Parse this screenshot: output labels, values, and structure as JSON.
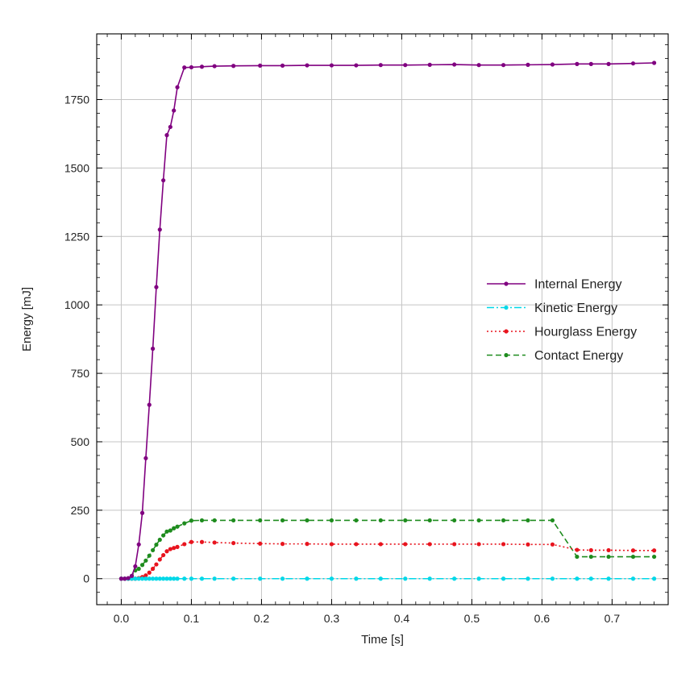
{
  "chart_data": {
    "type": "line",
    "title": "",
    "xlabel": "Time [s]",
    "ylabel": "Energy [mJ]",
    "xlim": [
      -0.035,
      0.78
    ],
    "ylim": [
      -95,
      1990
    ],
    "xticks": [
      0.0,
      0.1,
      0.2,
      0.3,
      0.4,
      0.5,
      0.6,
      0.7
    ],
    "xtick_labels": [
      "0.0",
      "0.1",
      "0.2",
      "0.3",
      "0.4",
      "0.5",
      "0.6",
      "0.7"
    ],
    "yticks": [
      0,
      250,
      500,
      750,
      1000,
      1250,
      1500,
      1750
    ],
    "ytick_labels": [
      "0",
      "250",
      "500",
      "750",
      "1000",
      "1250",
      "1500",
      "1750"
    ],
    "grid": true,
    "legend_position": "center-right",
    "series": [
      {
        "name": "Internal Energy",
        "color": "#800080",
        "dash": "solid",
        "x": [
          0.0,
          0.005,
          0.01,
          0.015,
          0.02,
          0.025,
          0.03,
          0.035,
          0.04,
          0.045,
          0.05,
          0.055,
          0.06,
          0.065,
          0.07,
          0.075,
          0.08,
          0.09,
          0.1,
          0.115,
          0.133,
          0.16,
          0.198,
          0.23,
          0.265,
          0.3,
          0.335,
          0.37,
          0.405,
          0.44,
          0.475,
          0.51,
          0.545,
          0.58,
          0.615,
          0.65,
          0.67,
          0.695,
          0.73,
          0.76
        ],
        "y": [
          0,
          0,
          2,
          10,
          45,
          125,
          240,
          440,
          635,
          840,
          1065,
          1275,
          1455,
          1620,
          1650,
          1710,
          1795,
          1867,
          1868,
          1870,
          1872,
          1873,
          1874,
          1874,
          1875,
          1875,
          1875,
          1876,
          1876,
          1877,
          1878,
          1876,
          1876,
          1877,
          1878,
          1880,
          1880,
          1880,
          1882,
          1884
        ]
      },
      {
        "name": "Kinetic Energy",
        "color": "#00d8e8",
        "dash": "dashdot",
        "x": [
          0.0,
          0.005,
          0.01,
          0.015,
          0.02,
          0.025,
          0.03,
          0.035,
          0.04,
          0.045,
          0.05,
          0.055,
          0.06,
          0.065,
          0.07,
          0.075,
          0.08,
          0.09,
          0.1,
          0.115,
          0.133,
          0.16,
          0.198,
          0.23,
          0.265,
          0.3,
          0.335,
          0.37,
          0.405,
          0.44,
          0.475,
          0.51,
          0.545,
          0.58,
          0.615,
          0.65,
          0.67,
          0.695,
          0.73,
          0.76
        ],
        "y": [
          0,
          0,
          0,
          0,
          0,
          0,
          0,
          0,
          0,
          0,
          0,
          0,
          0,
          0,
          0,
          0,
          0,
          0,
          0,
          0,
          0,
          0,
          0,
          0,
          0,
          0,
          0,
          0,
          0,
          0,
          0,
          0,
          0,
          0,
          0,
          0,
          0,
          0,
          0,
          0
        ]
      },
      {
        "name": "Hourglass Energy",
        "color": "#e8141e",
        "dash": "dotted",
        "x": [
          0.0,
          0.005,
          0.01,
          0.015,
          0.02,
          0.025,
          0.03,
          0.035,
          0.04,
          0.045,
          0.05,
          0.055,
          0.06,
          0.065,
          0.07,
          0.075,
          0.08,
          0.09,
          0.1,
          0.115,
          0.133,
          0.16,
          0.198,
          0.23,
          0.265,
          0.3,
          0.335,
          0.37,
          0.405,
          0.44,
          0.475,
          0.51,
          0.545,
          0.58,
          0.615,
          0.65,
          0.67,
          0.695,
          0.73,
          0.76
        ],
        "y": [
          0,
          0,
          0,
          0,
          0,
          2,
          6,
          12,
          22,
          36,
          52,
          70,
          86,
          100,
          108,
          112,
          116,
          126,
          134,
          134,
          132,
          130,
          128,
          127,
          127,
          126,
          126,
          126,
          126,
          126,
          126,
          126,
          126,
          125,
          125,
          105,
          104,
          104,
          103,
          103
        ]
      },
      {
        "name": "Contact Energy",
        "color": "#1e8c1e",
        "dash": "dashed",
        "x": [
          0.0,
          0.005,
          0.01,
          0.015,
          0.02,
          0.025,
          0.03,
          0.035,
          0.04,
          0.045,
          0.05,
          0.055,
          0.06,
          0.065,
          0.07,
          0.075,
          0.08,
          0.09,
          0.1,
          0.115,
          0.133,
          0.16,
          0.198,
          0.23,
          0.265,
          0.3,
          0.335,
          0.37,
          0.405,
          0.44,
          0.475,
          0.51,
          0.545,
          0.58,
          0.615,
          0.65,
          0.67,
          0.695,
          0.73,
          0.76
        ],
        "y": [
          0,
          0,
          0,
          10,
          30,
          36,
          50,
          66,
          84,
          104,
          124,
          142,
          158,
          172,
          176,
          184,
          190,
          202,
          212,
          213,
          213,
          213,
          213,
          213,
          213,
          213,
          213,
          213,
          213,
          213,
          213,
          213,
          213,
          213,
          213,
          80,
          80,
          80,
          80,
          80
        ]
      }
    ]
  }
}
